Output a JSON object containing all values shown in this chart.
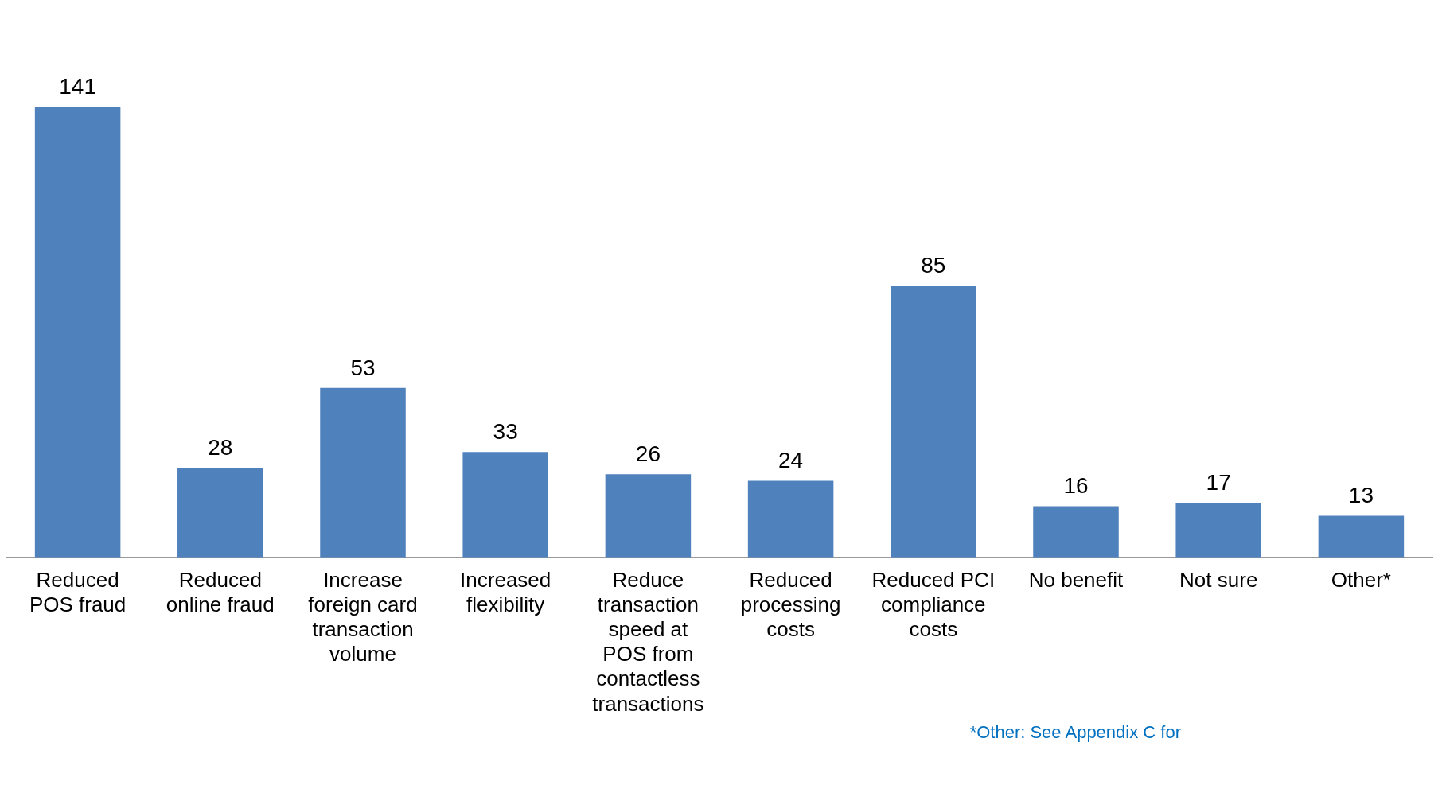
{
  "chart_data": {
    "type": "bar",
    "categories": [
      "Reduced POS fraud",
      "Reduced online fraud",
      "Increase foreign card transaction volume",
      "Increased flexibility",
      "Reduce transaction speed at POS from contactless transactions",
      "Reduced processing costs",
      "Reduced PCI compliance costs",
      "No benefit",
      "Not sure",
      "Other*"
    ],
    "values": [
      141,
      28,
      53,
      33,
      26,
      24,
      85,
      16,
      17,
      13
    ],
    "color": "#4f81bd",
    "data_labels": true,
    "grid": false,
    "legend": false,
    "annotations": [
      "*Other: See Appendix C for"
    ]
  }
}
